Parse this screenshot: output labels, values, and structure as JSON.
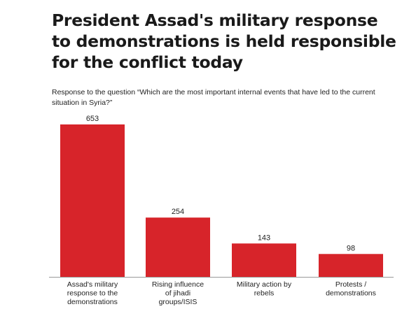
{
  "header": {
    "title": "President Assad's military response to demonstrations is held responsible for the conflict today",
    "subtitle": "Response to the question “Which are the most important internal events that have led to the current situation in Syria?”"
  },
  "chart_data": {
    "type": "bar",
    "categories": [
      [
        "Assad's military",
        "response to the",
        "demonstrations"
      ],
      [
        "Rising influence",
        "of jihadi",
        "groups/ISIS"
      ],
      [
        "Military action by",
        "rebels"
      ],
      [
        "Protests /",
        "demonstrations"
      ]
    ],
    "values": [
      653,
      254,
      143,
      98
    ],
    "bar_color": "#d7242a",
    "axis_color": "#999999",
    "ylim": [
      0,
      653
    ],
    "grid": false,
    "legend": "none"
  }
}
